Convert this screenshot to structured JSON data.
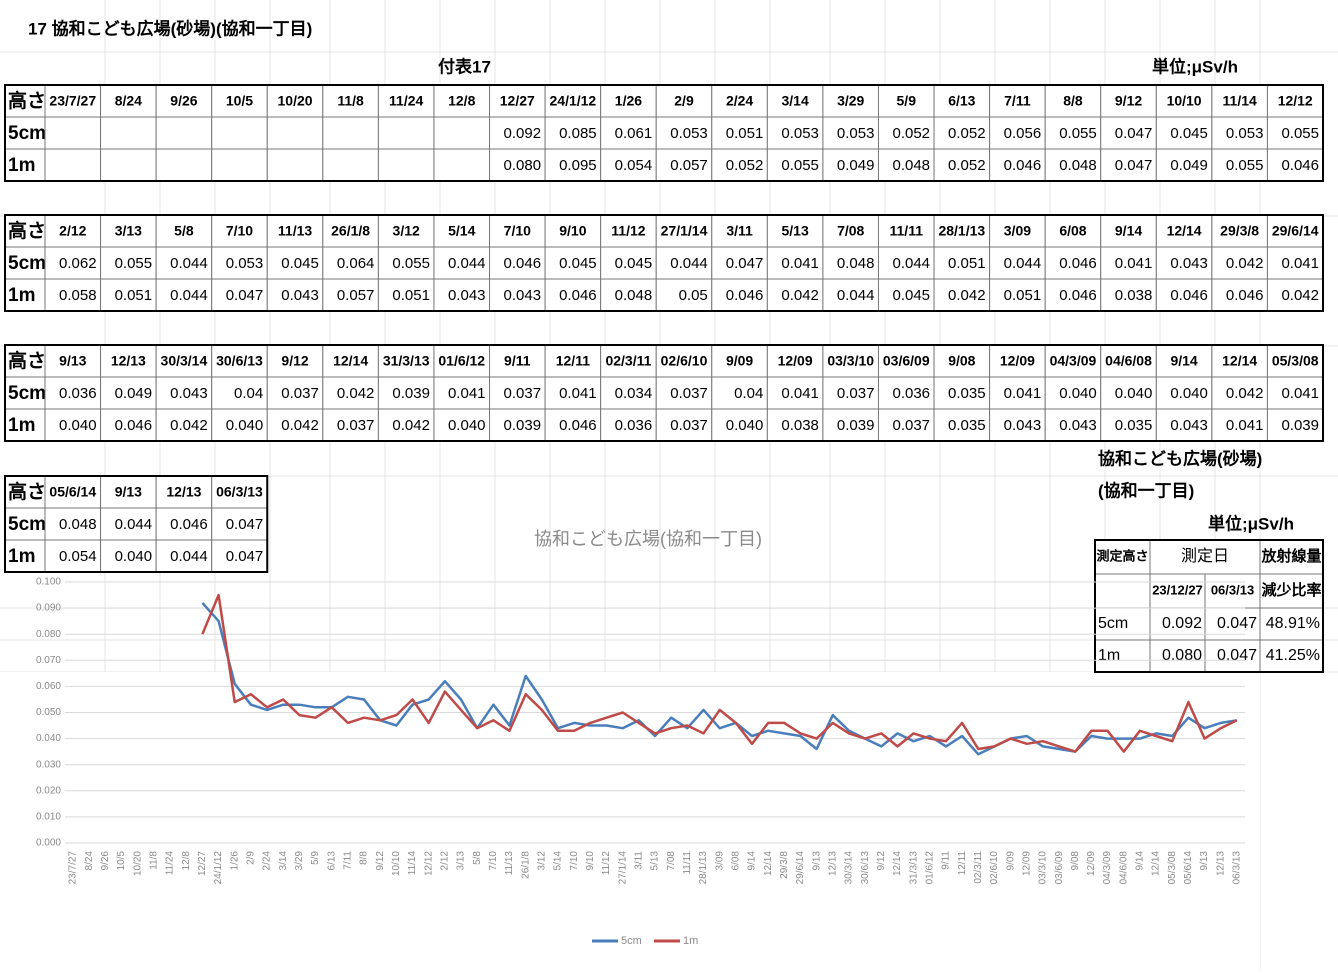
{
  "title": "17 協和こども広場(砂場)(協和一丁目)",
  "caption": "付表17",
  "unit": "単位;μSv/h",
  "tables": [
    {
      "header": [
        "高さ",
        "23/7/27",
        "8/24",
        "9/26",
        "10/5",
        "10/20",
        "11/8",
        "11/24",
        "12/8",
        "12/27",
        "24/1/12",
        "1/26",
        "2/9",
        "2/24",
        "3/14",
        "3/29",
        "5/9",
        "6/13",
        "7/11",
        "8/8",
        "9/12",
        "10/10",
        "11/14",
        "12/12"
      ],
      "rows": [
        [
          "5cm",
          null,
          null,
          null,
          null,
          null,
          null,
          null,
          null,
          "0.092",
          "0.085",
          "0.061",
          "0.053",
          "0.051",
          "0.053",
          "0.053",
          "0.052",
          "0.052",
          "0.056",
          "0.055",
          "0.047",
          "0.045",
          "0.053",
          "0.055"
        ],
        [
          "1m",
          null,
          null,
          null,
          null,
          null,
          null,
          null,
          null,
          "0.080",
          "0.095",
          "0.054",
          "0.057",
          "0.052",
          "0.055",
          "0.049",
          "0.048",
          "0.052",
          "0.046",
          "0.048",
          "0.047",
          "0.049",
          "0.055",
          "0.046"
        ]
      ]
    },
    {
      "header": [
        "高さ",
        "2/12",
        "3/13",
        "5/8",
        "7/10",
        "11/13",
        "26/1/8",
        "3/12",
        "5/14",
        "7/10",
        "9/10",
        "11/12",
        "27/1/14",
        "3/11",
        "5/13",
        "7/08",
        "11/11",
        "28/1/13",
        "3/09",
        "6/08",
        "9/14",
        "12/14",
        "29/3/8",
        "29/6/14"
      ],
      "rows": [
        [
          "5cm",
          "0.062",
          "0.055",
          "0.044",
          "0.053",
          "0.045",
          "0.064",
          "0.055",
          "0.044",
          "0.046",
          "0.045",
          "0.045",
          "0.044",
          "0.047",
          "0.041",
          "0.048",
          "0.044",
          "0.051",
          "0.044",
          "0.046",
          "0.041",
          "0.043",
          "0.042",
          "0.041"
        ],
        [
          "1m",
          "0.058",
          "0.051",
          "0.044",
          "0.047",
          "0.043",
          "0.057",
          "0.051",
          "0.043",
          "0.043",
          "0.046",
          "0.048",
          "0.05",
          "0.046",
          "0.042",
          "0.044",
          "0.045",
          "0.042",
          "0.051",
          "0.046",
          "0.038",
          "0.046",
          "0.046",
          "0.042"
        ]
      ]
    },
    {
      "header": [
        "高さ",
        "9/13",
        "12/13",
        "30/3/14",
        "30/6/13",
        "9/12",
        "12/14",
        "31/3/13",
        "01/6/12",
        "9/11",
        "12/11",
        "02/3/11",
        "02/6/10",
        "9/09",
        "12/09",
        "03/3/10",
        "03/6/09",
        "9/08",
        "12/09",
        "04/3/09",
        "04/6/08",
        "9/14",
        "12/14",
        "05/3/08"
      ],
      "rows": [
        [
          "5cm",
          "0.036",
          "0.049",
          "0.043",
          "0.04",
          "0.037",
          "0.042",
          "0.039",
          "0.041",
          "0.037",
          "0.041",
          "0.034",
          "0.037",
          "0.04",
          "0.041",
          "0.037",
          "0.036",
          "0.035",
          "0.041",
          "0.040",
          "0.040",
          "0.040",
          "0.042",
          "0.041"
        ],
        [
          "1m",
          "0.040",
          "0.046",
          "0.042",
          "0.040",
          "0.042",
          "0.037",
          "0.042",
          "0.040",
          "0.039",
          "0.046",
          "0.036",
          "0.037",
          "0.040",
          "0.038",
          "0.039",
          "0.037",
          "0.035",
          "0.043",
          "0.043",
          "0.035",
          "0.043",
          "0.041",
          "0.039"
        ]
      ]
    },
    {
      "header": [
        "高さ",
        "05/6/14",
        "9/13",
        "12/13",
        "06/3/13"
      ],
      "rows": [
        [
          "5cm",
          "0.048",
          "0.044",
          "0.046",
          "0.047"
        ],
        [
          "1m",
          "0.054",
          "0.040",
          "0.044",
          "0.047"
        ]
      ]
    }
  ],
  "summary": {
    "title": "協和こども広場(砂場)",
    "subtitle": "(協和一丁目)",
    "unit": "単位;μSv/h",
    "header": [
      "測定高さ",
      "測定日",
      "放射線量"
    ],
    "subheader": [
      "23/12/27",
      "06/3/13",
      "減少比率"
    ],
    "rows": [
      [
        "5cm",
        "0.092",
        "0.047",
        "48.91%"
      ],
      [
        "1m",
        "0.080",
        "0.047",
        "41.25%"
      ]
    ]
  },
  "chart_data": {
    "type": "line",
    "title": "協和こども広場(協和一丁目)",
    "categories": [
      "23/7/27",
      "8/24",
      "9/26",
      "10/5",
      "10/20",
      "11/8",
      "11/24",
      "12/8",
      "12/27",
      "24/1/12",
      "1/26",
      "2/9",
      "2/24",
      "3/14",
      "3/29",
      "5/9",
      "6/13",
      "7/11",
      "8/8",
      "9/12",
      "10/10",
      "11/14",
      "12/12",
      "2/12",
      "3/13",
      "5/8",
      "7/10",
      "11/13",
      "26/1/8",
      "3/12",
      "5/14",
      "7/10",
      "9/10",
      "11/12",
      "27/1/14",
      "3/11",
      "5/13",
      "7/08",
      "11/11",
      "28/1/13",
      "3/09",
      "6/08",
      "9/14",
      "12/14",
      "29/3/8",
      "29/6/14",
      "9/13",
      "12/13",
      "30/3/14",
      "30/6/13",
      "9/12",
      "12/14",
      "31/3/13",
      "01/6/12",
      "9/11",
      "12/11",
      "02/3/11",
      "02/6/10",
      "9/09",
      "12/09",
      "03/3/10",
      "03/6/09",
      "9/08",
      "12/09",
      "04/3/09",
      "04/6/08",
      "9/14",
      "12/14",
      "05/3/08",
      "05/6/14",
      "9/13",
      "12/13",
      "06/3/13"
    ],
    "series": [
      {
        "name": "5cm",
        "color": "#4a7ebb",
        "values": [
          null,
          null,
          null,
          null,
          null,
          null,
          null,
          null,
          0.092,
          0.085,
          0.061,
          0.053,
          0.051,
          0.053,
          0.053,
          0.052,
          0.052,
          0.056,
          0.055,
          0.047,
          0.045,
          0.053,
          0.055,
          0.062,
          0.055,
          0.044,
          0.053,
          0.045,
          0.064,
          0.055,
          0.044,
          0.046,
          0.045,
          0.045,
          0.044,
          0.047,
          0.041,
          0.048,
          0.044,
          0.051,
          0.044,
          0.046,
          0.041,
          0.043,
          0.042,
          0.041,
          0.036,
          0.049,
          0.043,
          0.04,
          0.037,
          0.042,
          0.039,
          0.041,
          0.037,
          0.041,
          0.034,
          0.037,
          0.04,
          0.041,
          0.037,
          0.036,
          0.035,
          0.041,
          0.04,
          0.04,
          0.04,
          0.042,
          0.041,
          0.048,
          0.044,
          0.046,
          0.047
        ]
      },
      {
        "name": "1m",
        "color": "#be4b48",
        "values": [
          null,
          null,
          null,
          null,
          null,
          null,
          null,
          null,
          0.08,
          0.095,
          0.054,
          0.057,
          0.052,
          0.055,
          0.049,
          0.048,
          0.052,
          0.046,
          0.048,
          0.047,
          0.049,
          0.055,
          0.046,
          0.058,
          0.051,
          0.044,
          0.047,
          0.043,
          0.057,
          0.051,
          0.043,
          0.043,
          0.046,
          0.048,
          0.05,
          0.046,
          0.042,
          0.044,
          0.045,
          0.042,
          0.051,
          0.046,
          0.038,
          0.046,
          0.046,
          0.042,
          0.04,
          0.046,
          0.042,
          0.04,
          0.042,
          0.037,
          0.042,
          0.04,
          0.039,
          0.046,
          0.036,
          0.037,
          0.04,
          0.038,
          0.039,
          0.037,
          0.035,
          0.043,
          0.043,
          0.035,
          0.043,
          0.041,
          0.039,
          0.054,
          0.04,
          0.044,
          0.047
        ]
      }
    ],
    "ylim": [
      0,
      0.1
    ],
    "yticks": [
      {
        "value": 0,
        "label": "0.000"
      },
      {
        "value": 0.01,
        "label": "0.010"
      },
      {
        "value": 0.02,
        "label": "0.020"
      },
      {
        "value": 0.03,
        "label": "0.030"
      },
      {
        "value": 0.04,
        "label": "0.040"
      },
      {
        "value": 0.05,
        "label": "0.050"
      },
      {
        "value": 0.06,
        "label": "0.060"
      },
      {
        "value": 0.07,
        "label": "0.070"
      },
      {
        "value": 0.08,
        "label": "0.080"
      },
      {
        "value": 0.09,
        "label": "0.090"
      },
      {
        "value": 0.1,
        "label": "0.100"
      }
    ],
    "grid": true
  }
}
